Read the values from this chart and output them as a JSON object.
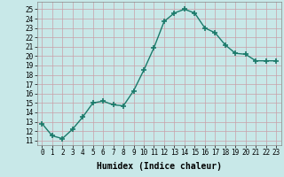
{
  "xlabel": "Humidex (Indice chaleur)",
  "ylabel": "",
  "x": [
    0,
    1,
    2,
    3,
    4,
    5,
    6,
    7,
    8,
    9,
    10,
    11,
    12,
    13,
    14,
    15,
    16,
    17,
    18,
    19,
    20,
    21,
    22,
    23
  ],
  "y": [
    12.8,
    11.5,
    11.2,
    12.2,
    13.5,
    15.0,
    15.2,
    14.8,
    14.7,
    16.3,
    18.5,
    20.9,
    23.7,
    24.6,
    25.0,
    24.6,
    23.0,
    22.5,
    21.2,
    20.3,
    20.2,
    19.5,
    19.5,
    19.5
  ],
  "line_color": "#1a7a6a",
  "marker": "+",
  "marker_size": 4,
  "marker_lw": 1.2,
  "background_color": "#c8e8e8",
  "grid_color": "#c8a0a8",
  "ylim": [
    10.5,
    25.8
  ],
  "xlim": [
    -0.5,
    23.5
  ],
  "yticks": [
    11,
    12,
    13,
    14,
    15,
    16,
    17,
    18,
    19,
    20,
    21,
    22,
    23,
    24,
    25
  ],
  "xticks": [
    0,
    1,
    2,
    3,
    4,
    5,
    6,
    7,
    8,
    9,
    10,
    11,
    12,
    13,
    14,
    15,
    16,
    17,
    18,
    19,
    20,
    21,
    22,
    23
  ],
  "tick_fontsize": 5.5,
  "xlabel_fontsize": 7,
  "linewidth": 1.0
}
